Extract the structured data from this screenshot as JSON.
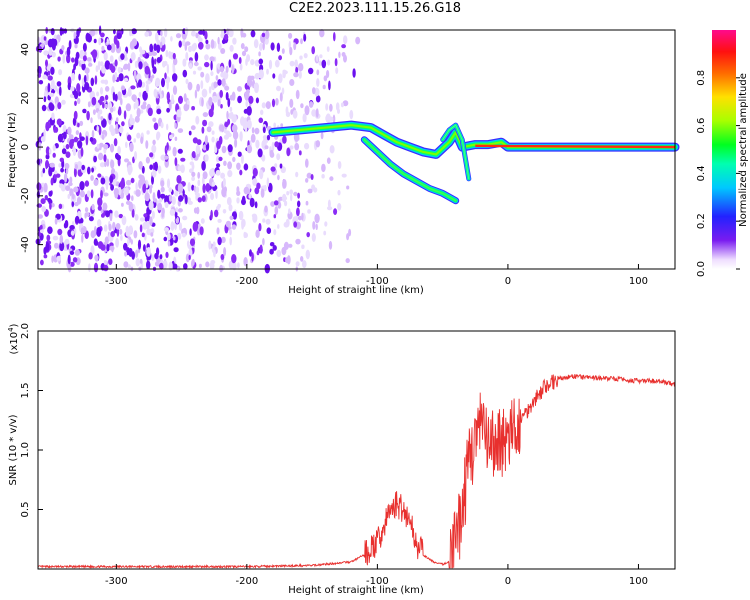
{
  "title": "C2E2.2023.111.15.26.G18",
  "chart_data": [
    {
      "type": "heatmap",
      "xlabel": "Height of straight line (km)",
      "ylabel": "Frequency (Hz)",
      "xlim": [
        -360,
        128
      ],
      "ylim": [
        -50,
        48
      ],
      "x_ticks": [
        -300,
        -200,
        -100,
        0,
        100
      ],
      "x_tick_labels": [
        "-300",
        "-200",
        "-100",
        "0",
        "100"
      ],
      "y_ticks": [
        -40,
        -20,
        0,
        20,
        40
      ],
      "y_tick_labels": [
        "-40",
        "-20",
        "0",
        "20",
        "40"
      ],
      "colorbar": {
        "label": "Normalized spectral amplitude",
        "range": [
          0,
          1
        ],
        "ticks": [
          0.0,
          0.2,
          0.4,
          0.6,
          0.8
        ],
        "tick_labels": [
          "0.0",
          "0.2",
          "0.4",
          "0.6",
          "0.8"
        ],
        "colormap": "rainbow (white to violet, blue, cyan, green, yellow, red, magenta)"
      },
      "features": {
        "noise_region_x": [
          -360,
          -115
        ],
        "signal_ridge": [
          [
            -180,
            6
          ],
          [
            -160,
            7
          ],
          [
            -140,
            8
          ],
          [
            -120,
            9
          ],
          [
            -105,
            8
          ],
          [
            -95,
            5
          ],
          [
            -85,
            2
          ],
          [
            -75,
            0
          ],
          [
            -65,
            -2
          ],
          [
            -55,
            -3
          ],
          [
            -45,
            2
          ],
          [
            -40,
            6
          ],
          [
            -35,
            0
          ],
          [
            -25,
            1
          ],
          [
            -15,
            1
          ],
          [
            -5,
            2
          ],
          [
            0,
            0
          ],
          [
            50,
            0
          ],
          [
            100,
            0
          ],
          [
            128,
            0
          ]
        ],
        "secondary_branch": [
          [
            -110,
            3
          ],
          [
            -100,
            -2
          ],
          [
            -90,
            -7
          ],
          [
            -80,
            -11
          ],
          [
            -70,
            -14
          ],
          [
            -60,
            -17
          ],
          [
            -50,
            -19
          ],
          [
            -40,
            -22
          ]
        ],
        "upper_branch": [
          [
            -50,
            3
          ],
          [
            -45,
            7
          ],
          [
            -40,
            9
          ],
          [
            -35,
            3
          ],
          [
            -30,
            -13
          ]
        ]
      },
      "grid": false,
      "legend": "colorbar at right"
    },
    {
      "type": "line",
      "xlabel": "Height of straight line (km)",
      "ylabel": "SNR (10 * v/v)",
      "y_multiplier_label": "(x10",
      "y_multiplier_exp": "4",
      "y_multiplier_close": ")",
      "xlim": [
        -360,
        128
      ],
      "ylim": [
        0,
        2.0
      ],
      "x_ticks": [
        -300,
        -200,
        -100,
        0,
        100
      ],
      "x_tick_labels": [
        "-300",
        "-200",
        "-100",
        "0",
        "100"
      ],
      "y_ticks": [
        0.5,
        1.0,
        1.5,
        2.0
      ],
      "y_tick_labels": [
        "0.5",
        "1.0",
        "1.5",
        "2.0"
      ],
      "series": [
        {
          "color": "#e8302e",
          "x": [
            -360,
            -300,
            -250,
            -200,
            -150,
            -120,
            -110,
            -100,
            -95,
            -90,
            -85,
            -80,
            -75,
            -70,
            -65,
            -60,
            -55,
            -50,
            -45,
            -40,
            -35,
            -30,
            -25,
            -20,
            -15,
            -10,
            -5,
            0,
            10,
            20,
            30,
            40,
            50,
            60,
            80,
            100,
            110,
            120,
            128
          ],
          "y": [
            0.02,
            0.02,
            0.02,
            0.02,
            0.03,
            0.06,
            0.12,
            0.22,
            0.35,
            0.5,
            0.55,
            0.5,
            0.4,
            0.22,
            0.12,
            0.08,
            0.05,
            0.04,
            0.06,
            0.2,
            0.5,
            0.9,
            1.1,
            1.2,
            1.0,
            1.05,
            1.1,
            1.05,
            1.25,
            1.42,
            1.55,
            1.6,
            1.62,
            1.61,
            1.6,
            1.58,
            1.58,
            1.57,
            1.55
          ]
        }
      ],
      "grid": false
    }
  ]
}
